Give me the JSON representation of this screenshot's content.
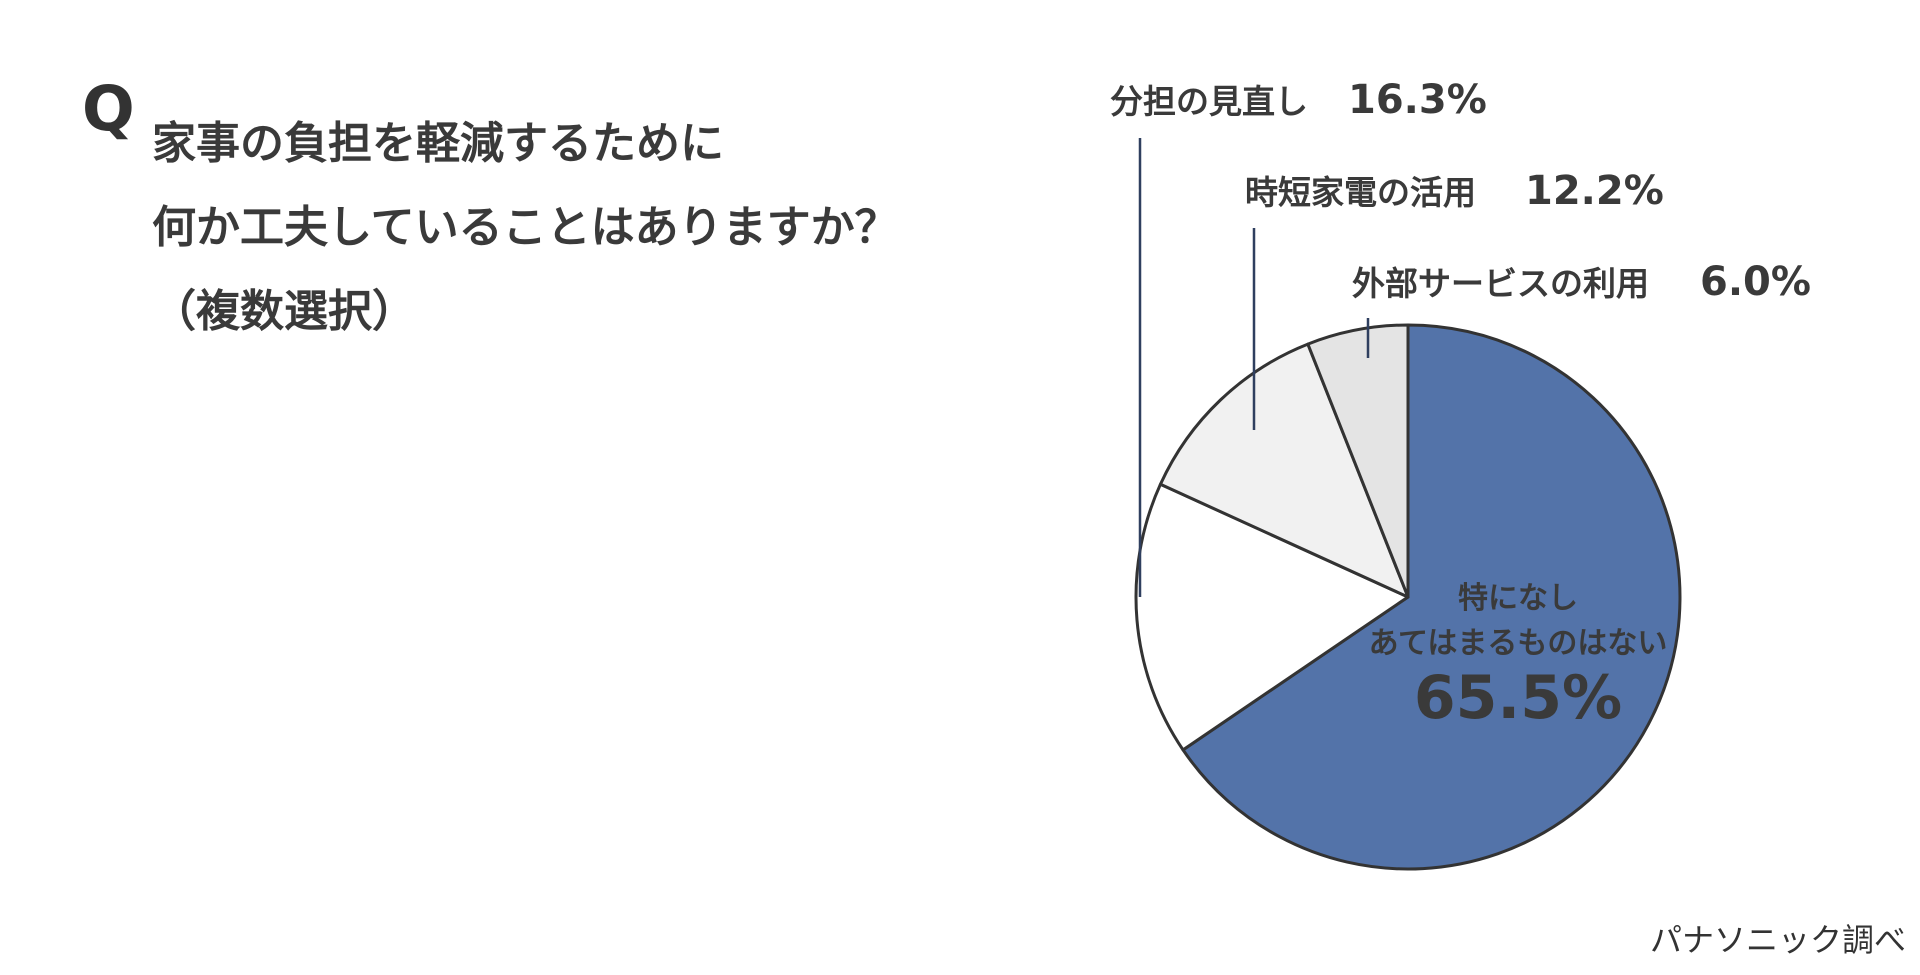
{
  "question": {
    "mark": "Q",
    "lines": [
      "家事の負担を軽減するために",
      "何か工夫していることはありますか？",
      "（複数選択）"
    ]
  },
  "source": "パナソニック調べ",
  "chart_data": {
    "type": "pie",
    "slices": [
      {
        "label_lines": [
          "特になし",
          "あてはまるものはない"
        ],
        "value": 65.5,
        "value_text": "65.5%",
        "color": "#5373a9"
      },
      {
        "label_lines": [
          "分担の見直し"
        ],
        "value": 16.3,
        "value_text": "16.3%",
        "color": "#ffffff"
      },
      {
        "label_lines": [
          "時短家電の活用"
        ],
        "value": 12.2,
        "value_text": "12.2%",
        "color": "#f1f1f1"
      },
      {
        "label_lines": [
          "外部サービスの利用"
        ],
        "value": 6.0,
        "value_text": "6.0%",
        "color": "#e4e4e4"
      }
    ],
    "start": "12 o'clock",
    "direction": "clockwise",
    "stroke_color": "#333333",
    "leader_color": "#2f3f5f"
  }
}
